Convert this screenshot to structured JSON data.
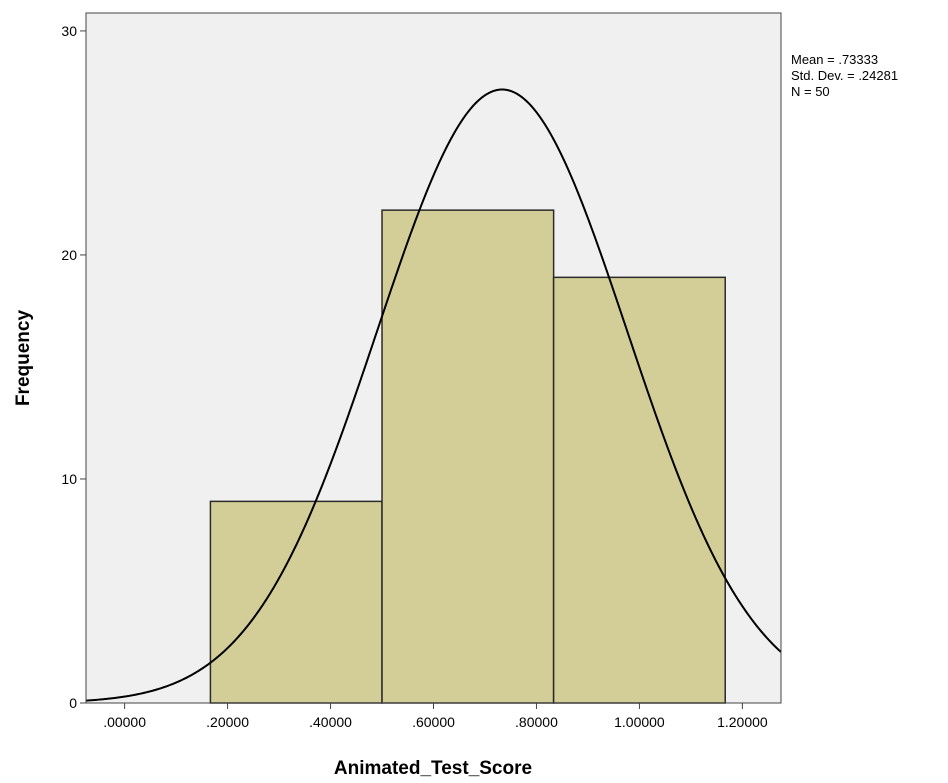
{
  "chart_data": {
    "type": "bar",
    "subtype": "histogram",
    "xlabel": "Animated_Test_Score",
    "ylabel": "Frequency",
    "xlim": [
      -0.075,
      1.275
    ],
    "ylim": [
      0,
      30.8
    ],
    "x_ticks": [
      0,
      0.2,
      0.4,
      0.6,
      0.8,
      1.0,
      1.2
    ],
    "x_tick_labels": [
      ".00000",
      ".20000",
      ".40000",
      ".60000",
      ".80000",
      "1.00000",
      "1.20000"
    ],
    "y_ticks": [
      0,
      10,
      20,
      30
    ],
    "y_tick_labels": [
      "0",
      "10",
      "20",
      "30"
    ],
    "bins": [
      {
        "start": 0.16667,
        "end": 0.5,
        "count": 9
      },
      {
        "start": 0.5,
        "end": 0.83333,
        "count": 22
      },
      {
        "start": 0.83333,
        "end": 1.16667,
        "count": 19
      }
    ],
    "normal_curve": {
      "mean": 0.73333,
      "std": 0.24281,
      "n": 50,
      "bin_width": 0.33333
    },
    "stats_text": [
      "Mean = .73333",
      "Std. Dev. = .24281",
      "N = 50"
    ],
    "grid": false,
    "colors": {
      "plot_background": "#f0f0f0",
      "bar_fill": "#d3ce97",
      "bar_stroke": "#2b2b2b",
      "curve": "#000000",
      "axis": "#444444"
    }
  }
}
